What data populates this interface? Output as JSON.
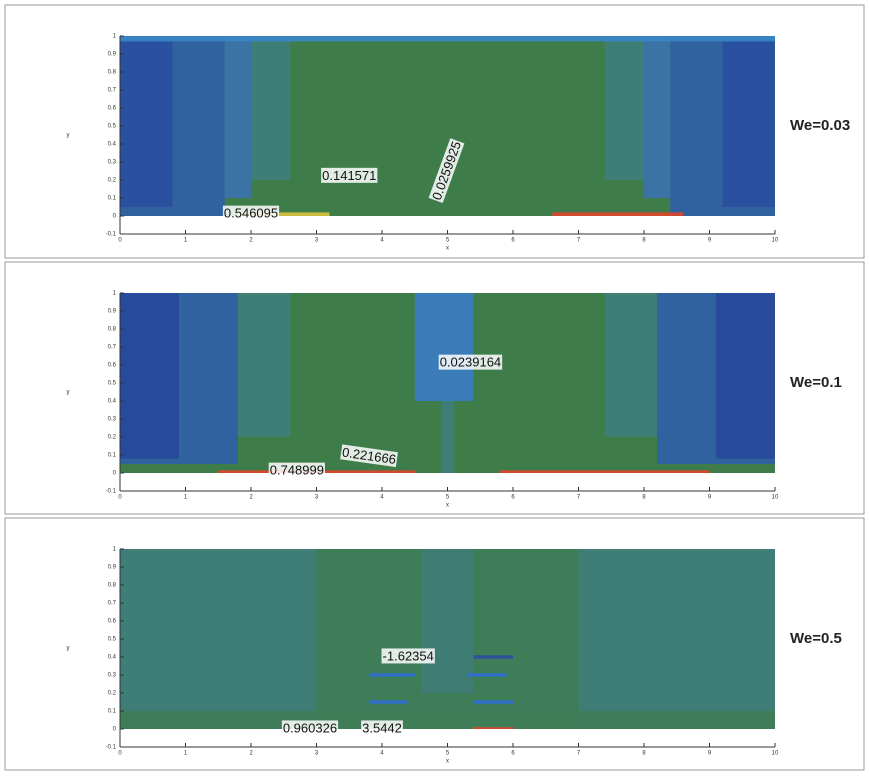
{
  "chart_data": [
    {
      "type": "contour",
      "annotation": "We=0.03",
      "xlabel": "x",
      "ylabel": "y",
      "xlim": [
        0,
        10
      ],
      "ylim": [
        -0.1,
        1
      ],
      "xticks": [
        0,
        1,
        2,
        3,
        4,
        5,
        6,
        7,
        8,
        9,
        10
      ],
      "yticks": [
        -0.1,
        0,
        0.1,
        0.2,
        0.3,
        0.4,
        0.5,
        0.6,
        0.7,
        0.8,
        0.9,
        1
      ],
      "contour_labels": [
        0.141571,
        0.0259925,
        0.546095
      ]
    },
    {
      "type": "contour",
      "annotation": "We=0.1",
      "xlabel": "x",
      "ylabel": "y",
      "xlim": [
        0,
        10
      ],
      "ylim": [
        -0.1,
        1
      ],
      "xticks": [
        0,
        1,
        2,
        3,
        4,
        5,
        6,
        7,
        8,
        9,
        10
      ],
      "yticks": [
        -0.1,
        0,
        0.1,
        0.2,
        0.3,
        0.4,
        0.5,
        0.6,
        0.7,
        0.8,
        0.9,
        1
      ],
      "contour_labels": [
        0.0239164,
        0.221666,
        0.748999
      ]
    },
    {
      "type": "contour",
      "annotation": "We=0.5",
      "xlabel": "x",
      "ylabel": "y",
      "xlim": [
        0,
        10
      ],
      "ylim": [
        -0.1,
        1
      ],
      "xticks": [
        0,
        1,
        2,
        3,
        4,
        5,
        6,
        7,
        8,
        9,
        10
      ],
      "yticks": [
        -0.1,
        0,
        0.1,
        0.2,
        0.3,
        0.4,
        0.5,
        0.6,
        0.7,
        0.8,
        0.9,
        1
      ],
      "contour_labels": [
        -1.62354,
        0.960326,
        3.5442
      ]
    }
  ]
}
